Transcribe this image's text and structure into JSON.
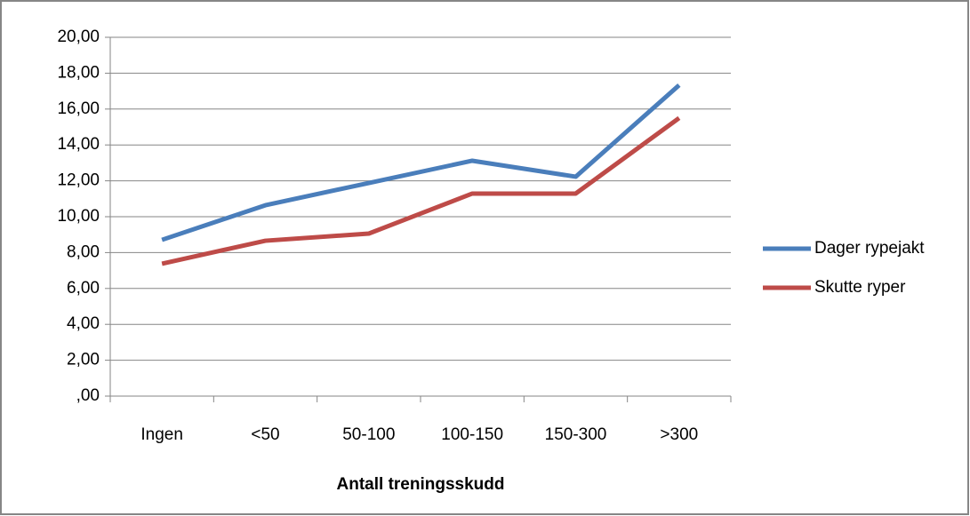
{
  "chart_data": {
    "type": "line",
    "x_label": "Antall treningsskudd",
    "categories": [
      "Ingen",
      "<50",
      "50-100",
      "100-150",
      "150-300",
      ">300"
    ],
    "series": [
      {
        "name": "Dager rypejakt",
        "color": "#4a7ebb",
        "values": [
          8.71,
          10.64,
          11.88,
          13.12,
          12.23,
          17.33
        ]
      },
      {
        "name": "Skutte ryper",
        "color": "#be4b48",
        "values": [
          7.38,
          8.66,
          9.06,
          11.29,
          11.29,
          15.5
        ]
      }
    ],
    "ylim": [
      0,
      20
    ],
    "yticks": [
      {
        "value": 0,
        "label": ",00"
      },
      {
        "value": 2,
        "label": "2,00"
      },
      {
        "value": 4,
        "label": "4,00"
      },
      {
        "value": 6,
        "label": "6,00"
      },
      {
        "value": 8,
        "label": "8,00"
      },
      {
        "value": 10,
        "label": "10,00"
      },
      {
        "value": 12,
        "label": "12,00"
      },
      {
        "value": 14,
        "label": "14,00"
      },
      {
        "value": 16,
        "label": "16,00"
      },
      {
        "value": 18,
        "label": "18,00"
      },
      {
        "value": 20,
        "label": "20,00"
      }
    ],
    "grid": true,
    "legend": "right"
  }
}
